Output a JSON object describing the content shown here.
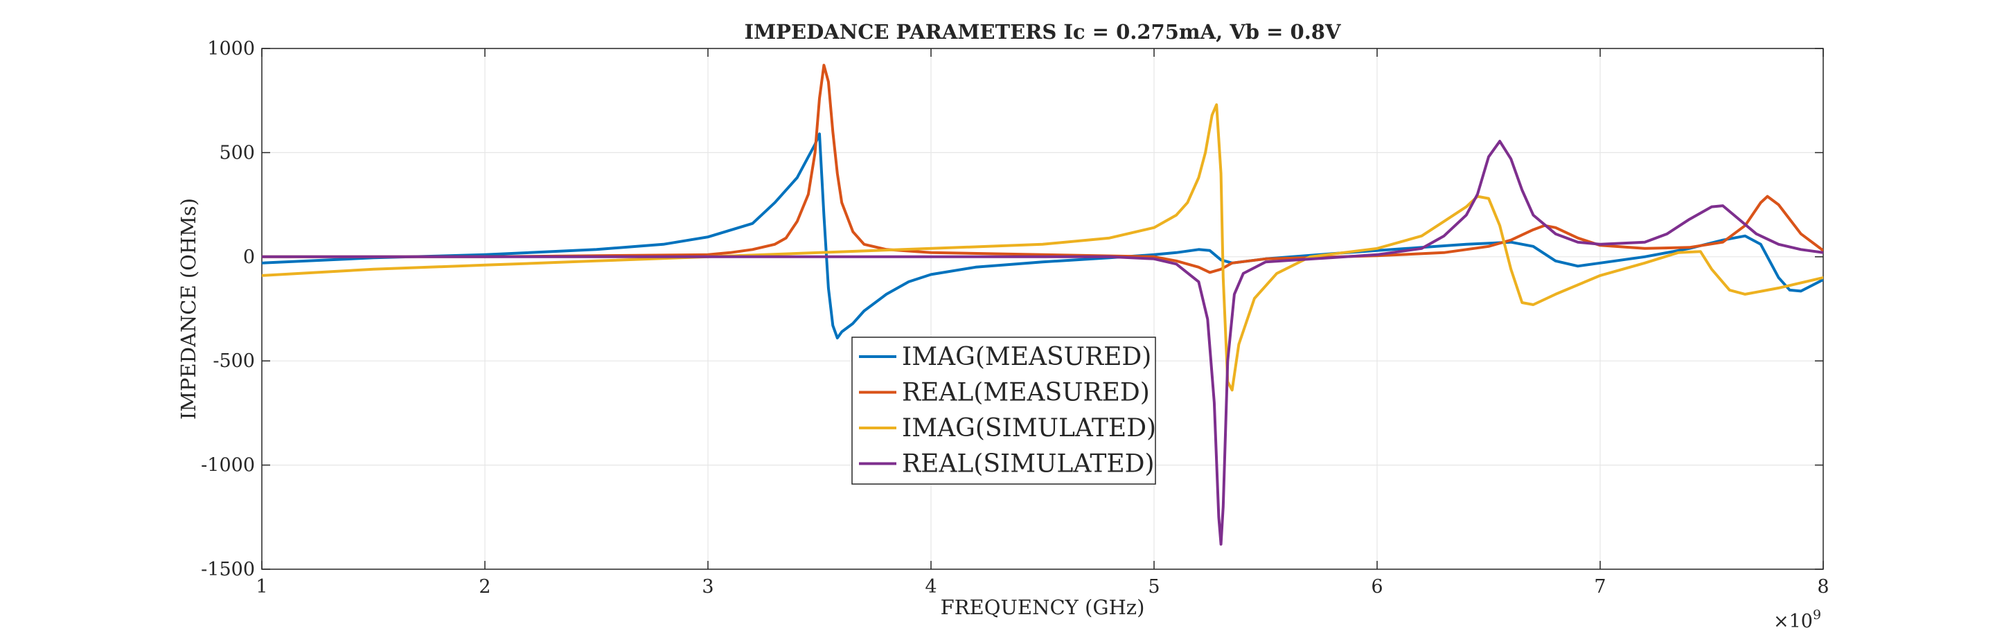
{
  "chart_data": {
    "type": "line",
    "title": "IMPEDANCE PARAMETERS Ic = 0.275mA, Vb = 0.8V",
    "xlabel": "FREQUENCY (GHz)",
    "ylabel": "IMPEDANCE (OHMs)",
    "x_exponent_label": "×10",
    "x_exponent_power": "9",
    "xlim": [
      1,
      8
    ],
    "ylim": [
      -1500,
      1000
    ],
    "x_ticks": [
      1,
      2,
      3,
      4,
      5,
      6,
      7,
      8
    ],
    "y_ticks": [
      -1500,
      -1000,
      -500,
      0,
      500,
      1000
    ],
    "grid": true,
    "legend_position": "center-bottom",
    "series": [
      {
        "name": "IMAG(MEASURED)",
        "color": "#0072BD",
        "points": [
          [
            1.0,
            -30
          ],
          [
            1.5,
            -5
          ],
          [
            2.0,
            10
          ],
          [
            2.5,
            35
          ],
          [
            2.8,
            60
          ],
          [
            3.0,
            95
          ],
          [
            3.2,
            160
          ],
          [
            3.3,
            260
          ],
          [
            3.4,
            380
          ],
          [
            3.45,
            480
          ],
          [
            3.48,
            540
          ],
          [
            3.5,
            590
          ],
          [
            3.52,
            200
          ],
          [
            3.54,
            -150
          ],
          [
            3.56,
            -330
          ],
          [
            3.58,
            -390
          ],
          [
            3.6,
            -360
          ],
          [
            3.65,
            -320
          ],
          [
            3.7,
            -260
          ],
          [
            3.8,
            -180
          ],
          [
            3.9,
            -120
          ],
          [
            4.0,
            -85
          ],
          [
            4.2,
            -50
          ],
          [
            4.5,
            -25
          ],
          [
            4.8,
            -5
          ],
          [
            5.0,
            10
          ],
          [
            5.1,
            20
          ],
          [
            5.2,
            35
          ],
          [
            5.25,
            30
          ],
          [
            5.3,
            -15
          ],
          [
            5.35,
            -30
          ],
          [
            5.5,
            -10
          ],
          [
            5.8,
            15
          ],
          [
            6.0,
            30
          ],
          [
            6.2,
            45
          ],
          [
            6.4,
            60
          ],
          [
            6.6,
            70
          ],
          [
            6.7,
            50
          ],
          [
            6.8,
            -20
          ],
          [
            6.9,
            -45
          ],
          [
            7.0,
            -30
          ],
          [
            7.2,
            0
          ],
          [
            7.4,
            40
          ],
          [
            7.55,
            80
          ],
          [
            7.65,
            100
          ],
          [
            7.72,
            60
          ],
          [
            7.8,
            -100
          ],
          [
            7.85,
            -160
          ],
          [
            7.9,
            -165
          ],
          [
            8.0,
            -110
          ]
        ]
      },
      {
        "name": "REAL(MEASURED)",
        "color": "#D95319",
        "points": [
          [
            1.0,
            0
          ],
          [
            2.0,
            0
          ],
          [
            2.5,
            5
          ],
          [
            3.0,
            10
          ],
          [
            3.1,
            20
          ],
          [
            3.2,
            35
          ],
          [
            3.3,
            60
          ],
          [
            3.35,
            90
          ],
          [
            3.4,
            170
          ],
          [
            3.45,
            300
          ],
          [
            3.48,
            500
          ],
          [
            3.5,
            760
          ],
          [
            3.52,
            920
          ],
          [
            3.54,
            840
          ],
          [
            3.56,
            600
          ],
          [
            3.58,
            400
          ],
          [
            3.6,
            260
          ],
          [
            3.65,
            120
          ],
          [
            3.7,
            60
          ],
          [
            3.8,
            35
          ],
          [
            4.0,
            20
          ],
          [
            4.5,
            10
          ],
          [
            5.0,
            0
          ],
          [
            5.1,
            -20
          ],
          [
            5.2,
            -50
          ],
          [
            5.25,
            -75
          ],
          [
            5.3,
            -60
          ],
          [
            5.35,
            -30
          ],
          [
            5.5,
            -10
          ],
          [
            6.0,
            5
          ],
          [
            6.3,
            20
          ],
          [
            6.5,
            50
          ],
          [
            6.6,
            80
          ],
          [
            6.7,
            130
          ],
          [
            6.75,
            150
          ],
          [
            6.8,
            140
          ],
          [
            6.9,
            90
          ],
          [
            7.0,
            55
          ],
          [
            7.2,
            40
          ],
          [
            7.4,
            45
          ],
          [
            7.55,
            70
          ],
          [
            7.65,
            150
          ],
          [
            7.72,
            260
          ],
          [
            7.75,
            290
          ],
          [
            7.8,
            250
          ],
          [
            7.9,
            110
          ],
          [
            8.0,
            30
          ]
        ]
      },
      {
        "name": "IMAG(SIMULATED)",
        "color": "#EDB120",
        "points": [
          [
            1.0,
            -90
          ],
          [
            1.5,
            -60
          ],
          [
            2.0,
            -40
          ],
          [
            2.5,
            -20
          ],
          [
            3.0,
            0
          ],
          [
            3.5,
            20
          ],
          [
            4.0,
            40
          ],
          [
            4.5,
            60
          ],
          [
            4.8,
            90
          ],
          [
            5.0,
            140
          ],
          [
            5.1,
            200
          ],
          [
            5.15,
            260
          ],
          [
            5.2,
            380
          ],
          [
            5.23,
            500
          ],
          [
            5.26,
            680
          ],
          [
            5.28,
            730
          ],
          [
            5.3,
            400
          ],
          [
            5.31,
            -100
          ],
          [
            5.33,
            -600
          ],
          [
            5.35,
            -640
          ],
          [
            5.38,
            -420
          ],
          [
            5.45,
            -200
          ],
          [
            5.55,
            -80
          ],
          [
            5.7,
            0
          ],
          [
            6.0,
            40
          ],
          [
            6.2,
            100
          ],
          [
            6.3,
            170
          ],
          [
            6.4,
            240
          ],
          [
            6.45,
            290
          ],
          [
            6.5,
            280
          ],
          [
            6.55,
            150
          ],
          [
            6.6,
            -60
          ],
          [
            6.65,
            -220
          ],
          [
            6.7,
            -230
          ],
          [
            6.8,
            -180
          ],
          [
            7.0,
            -90
          ],
          [
            7.2,
            -30
          ],
          [
            7.35,
            20
          ],
          [
            7.45,
            25
          ],
          [
            7.5,
            -60
          ],
          [
            7.58,
            -160
          ],
          [
            7.65,
            -180
          ],
          [
            7.8,
            -150
          ],
          [
            8.0,
            -100
          ]
        ]
      },
      {
        "name": "REAL(SIMULATED)",
        "color": "#7E2F8E",
        "points": [
          [
            1.0,
            0
          ],
          [
            3.0,
            0
          ],
          [
            4.0,
            0
          ],
          [
            4.8,
            0
          ],
          [
            5.0,
            -10
          ],
          [
            5.1,
            -35
          ],
          [
            5.2,
            -120
          ],
          [
            5.24,
            -300
          ],
          [
            5.27,
            -700
          ],
          [
            5.29,
            -1250
          ],
          [
            5.3,
            -1380
          ],
          [
            5.31,
            -1200
          ],
          [
            5.33,
            -500
          ],
          [
            5.36,
            -180
          ],
          [
            5.4,
            -80
          ],
          [
            5.5,
            -25
          ],
          [
            6.0,
            10
          ],
          [
            6.2,
            40
          ],
          [
            6.3,
            100
          ],
          [
            6.4,
            200
          ],
          [
            6.45,
            300
          ],
          [
            6.5,
            480
          ],
          [
            6.55,
            555
          ],
          [
            6.6,
            470
          ],
          [
            6.65,
            320
          ],
          [
            6.7,
            200
          ],
          [
            6.8,
            110
          ],
          [
            6.9,
            70
          ],
          [
            7.0,
            60
          ],
          [
            7.2,
            70
          ],
          [
            7.3,
            110
          ],
          [
            7.4,
            180
          ],
          [
            7.5,
            240
          ],
          [
            7.55,
            245
          ],
          [
            7.6,
            200
          ],
          [
            7.7,
            110
          ],
          [
            7.8,
            60
          ],
          [
            7.9,
            35
          ],
          [
            8.0,
            20
          ]
        ]
      }
    ]
  }
}
